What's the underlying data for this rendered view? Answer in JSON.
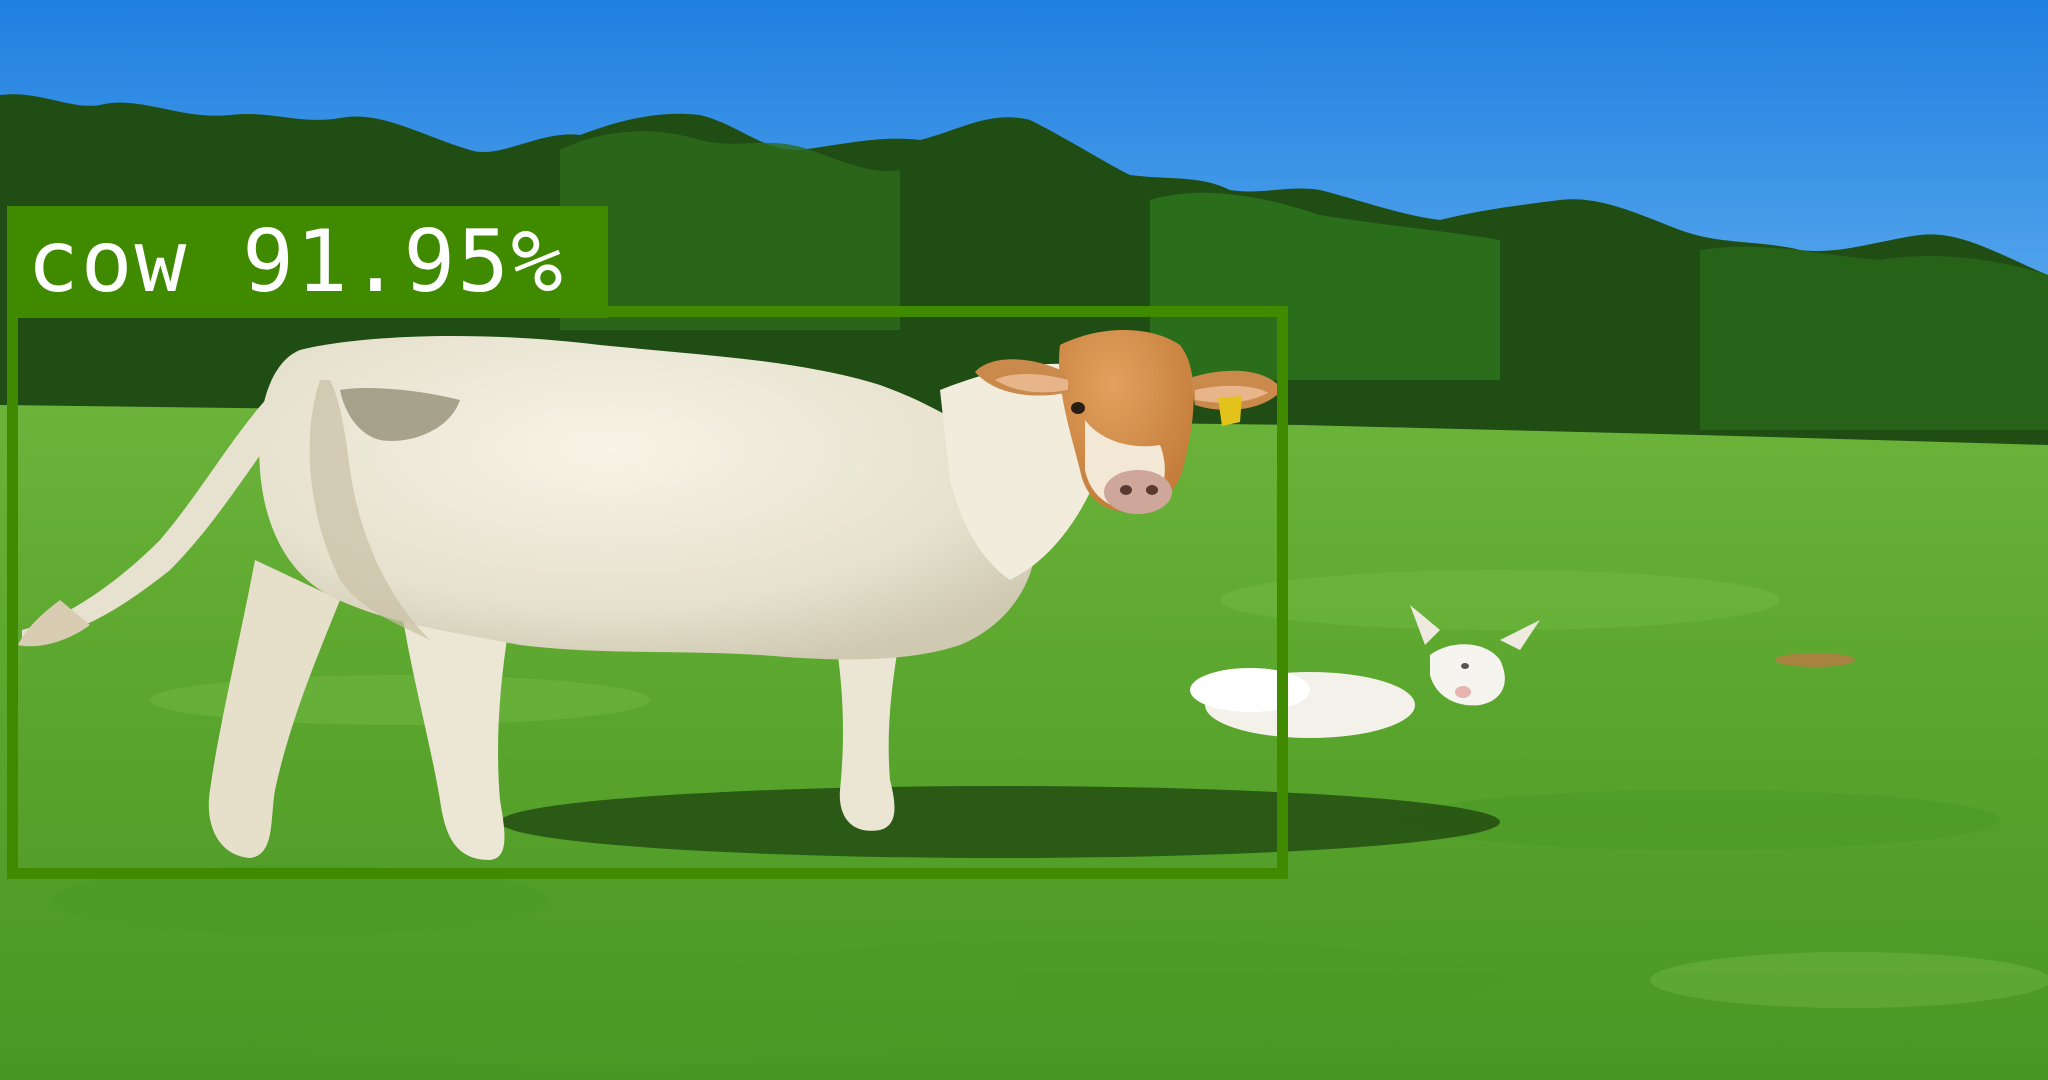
{
  "detection": {
    "label": "cow 91.95%",
    "class": "cow",
    "confidence_percent": 91.95,
    "box_color": "#408a00",
    "label_text_color": "#ffffff"
  },
  "scene": {
    "sky_color": "#2f8fe6",
    "treeline_color": "#1f4d14",
    "grass_color": "#5aa62e"
  }
}
